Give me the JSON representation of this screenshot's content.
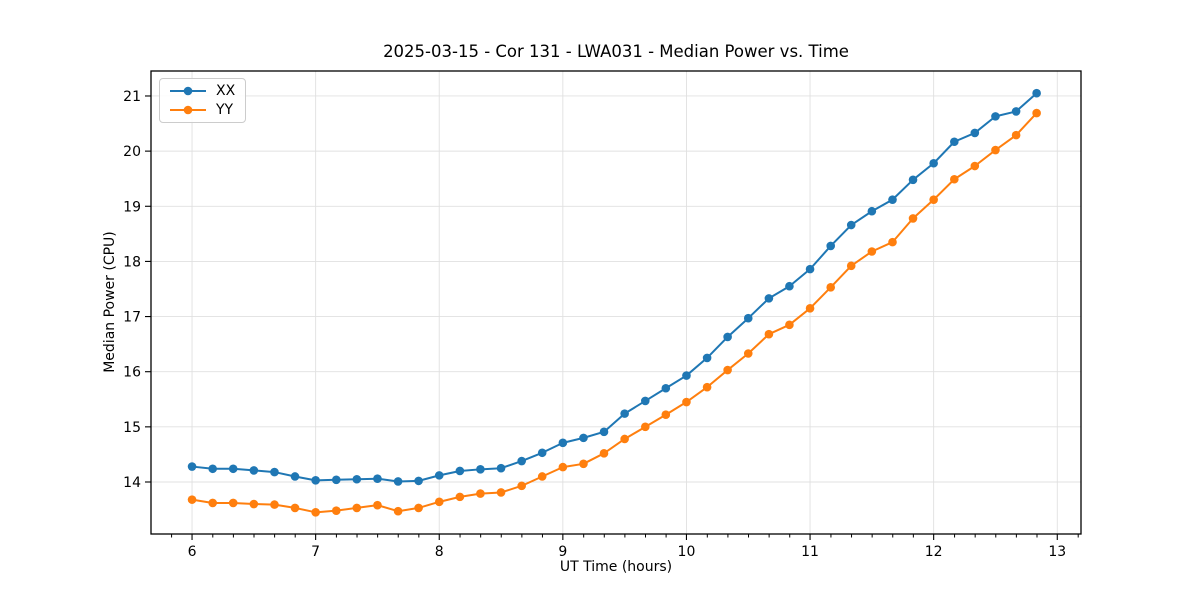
{
  "figure": {
    "title": "2025-03-15 - Cor 131 - LWA031 - Median Power vs. Time",
    "xlabel": "UT Time (hours)",
    "ylabel": "Median Power (CPU)"
  },
  "chart_data": {
    "type": "line",
    "title": "2025-03-15 - Cor 131 - LWA031 - Median Power vs. Time",
    "xlabel": "UT Time (hours)",
    "ylabel": "Median Power (CPU)",
    "xlim": [
      5.668,
      13.192
    ],
    "ylim": [
      13.057,
      21.453
    ],
    "x_major_ticks": [
      6,
      7,
      8,
      9,
      10,
      11,
      12,
      13
    ],
    "y_major_ticks": [
      14,
      15,
      16,
      17,
      18,
      19,
      20,
      21
    ],
    "x_minor_step": 0.1667,
    "grid": true,
    "legend_position": "upper left",
    "marker": "circle",
    "x": [
      6,
      6.167,
      6.333,
      6.5,
      6.667,
      6.833,
      7,
      7.167,
      7.333,
      7.5,
      7.667,
      7.833,
      8,
      8.167,
      8.333,
      8.5,
      8.667,
      8.833,
      9,
      9.167,
      9.333,
      9.5,
      9.667,
      9.833,
      10,
      10.167,
      10.333,
      10.5,
      10.667,
      10.833,
      11,
      11.167,
      11.333,
      11.5,
      11.667,
      11.833,
      12,
      12.167,
      12.333,
      12.5,
      12.667,
      12.833
    ],
    "series": [
      {
        "name": "XX",
        "color": "#1f77b4",
        "values": [
          14.28,
          14.24,
          14.24,
          14.21,
          14.18,
          14.1,
          14.03,
          14.04,
          14.05,
          14.06,
          14.01,
          14.02,
          14.12,
          14.2,
          14.23,
          14.25,
          14.38,
          14.53,
          14.71,
          14.8,
          14.91,
          15.24,
          15.47,
          15.7,
          15.93,
          16.25,
          16.63,
          16.97,
          17.33,
          17.55,
          17.86,
          18.28,
          18.66,
          18.91,
          19.12,
          19.48,
          19.78,
          20.17,
          20.33,
          20.63,
          20.72,
          21.05
        ]
      },
      {
        "name": "YY",
        "color": "#ff7f0e",
        "values": [
          13.68,
          13.62,
          13.62,
          13.6,
          13.59,
          13.53,
          13.45,
          13.48,
          13.53,
          13.58,
          13.47,
          13.53,
          13.64,
          13.73,
          13.79,
          13.81,
          13.93,
          14.1,
          14.27,
          14.33,
          14.52,
          14.78,
          15.0,
          15.22,
          15.45,
          15.72,
          16.03,
          16.33,
          16.68,
          16.85,
          17.15,
          17.53,
          17.92,
          18.18,
          18.35,
          18.78,
          19.12,
          19.49,
          19.73,
          20.02,
          20.29,
          20.69
        ]
      }
    ],
    "colors": {
      "series_xx": "#1f77b4",
      "series_yy": "#ff7f0e",
      "grid": "#e0e0e0",
      "spine": "#000000",
      "text": "#000000",
      "background": "#ffffff"
    }
  }
}
